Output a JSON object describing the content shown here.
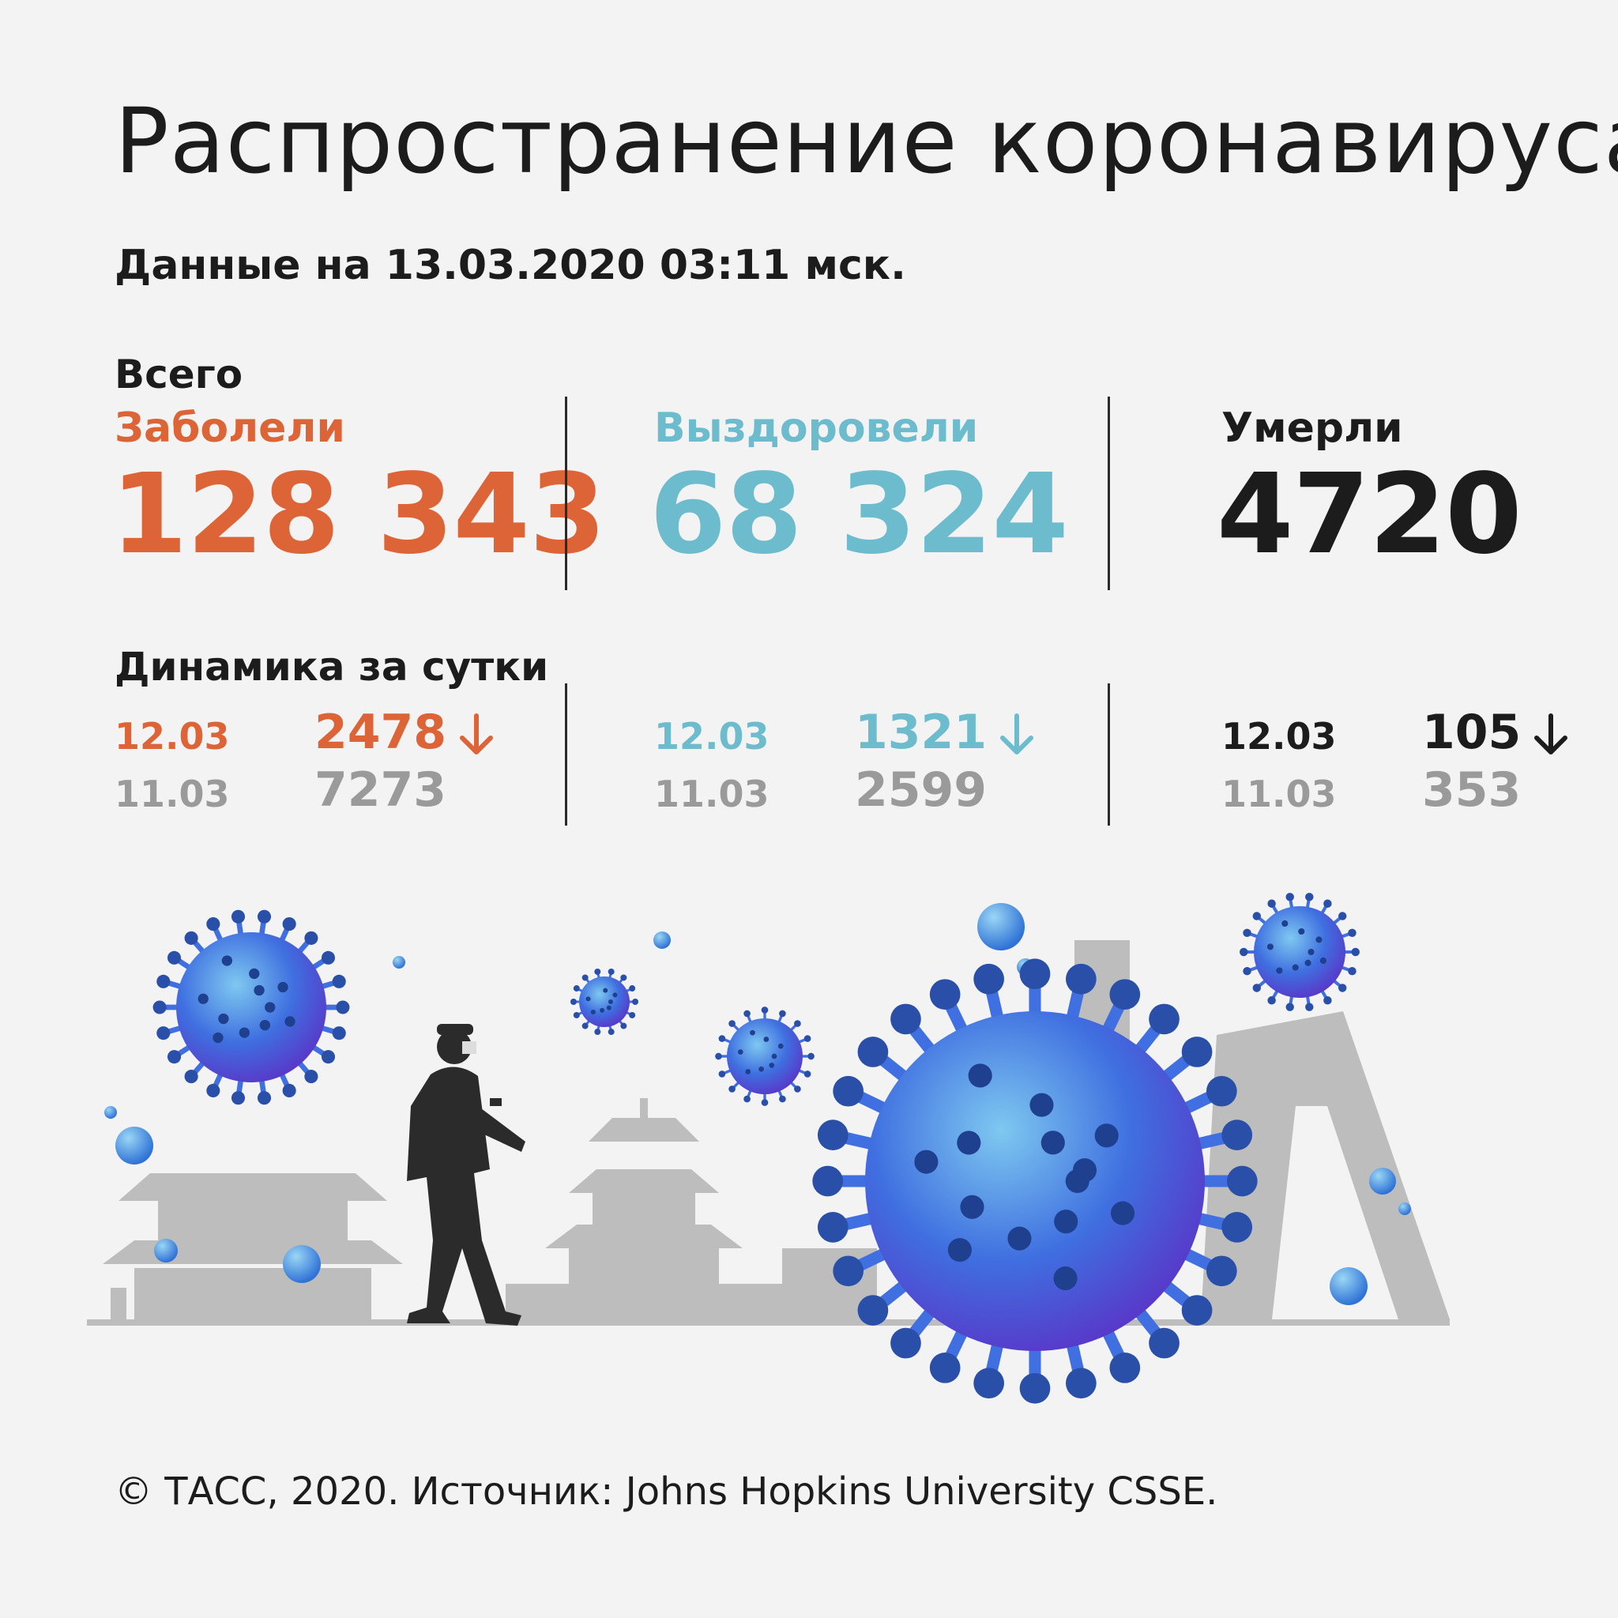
{
  "title": "Распространение коронавируса",
  "subtitle": "Данные на 13.03.2020 03:11 мск.",
  "totals": {
    "label": "Всего",
    "infected": {
      "label": "Заболели",
      "value": "128 343",
      "color": "#dc6436"
    },
    "recovered": {
      "label": "Выздоровели",
      "value": "68 324",
      "color": "#6cbccd"
    },
    "deaths": {
      "label": "Умерли",
      "value": "4720",
      "color": "#1c1c1c"
    }
  },
  "dynamics": {
    "label": "Динамика за сутки",
    "infected": {
      "date1": "12.03",
      "value1": "2478",
      "date2": "11.03",
      "value2": "7273",
      "trend": "down"
    },
    "recovered": {
      "date1": "12.03",
      "value1": "1321",
      "date2": "11.03",
      "value2": "2599",
      "trend": "down"
    },
    "deaths": {
      "date1": "12.03",
      "value1": "105",
      "date2": "11.03",
      "value2": "353",
      "trend": "down"
    }
  },
  "illustration": {
    "elements": [
      "coronavirus-icon",
      "person-in-mask-icon",
      "chinese-temple-icon",
      "skyscraper-icon"
    ],
    "colors": {
      "virus": "#3f6fe0",
      "virus_spike": "#2a4fa8",
      "skyline": "#bdbdbd",
      "person": "#2b2b2b"
    }
  },
  "footer": "© ТАСС, 2020. Источник: Johns Hopkins University CSSE."
}
